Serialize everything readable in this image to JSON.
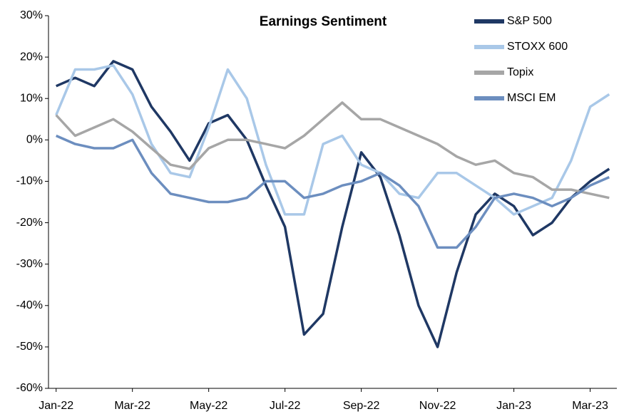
{
  "chart_data": {
    "type": "line",
    "title": "Earnings Sentiment",
    "x": [
      0,
      0.5,
      1,
      1.5,
      2,
      2.5,
      3,
      3.5,
      4,
      4.5,
      5,
      5.5,
      6,
      6.5,
      7,
      7.5,
      8,
      8.5,
      9,
      9.5,
      10,
      10.5,
      11,
      11.5,
      12,
      12.5,
      13,
      13.5,
      14,
      14.5
    ],
    "xlim": [
      -0.2,
      14.7
    ],
    "xticks": [
      {
        "value": 0,
        "label": "Jan-22"
      },
      {
        "value": 2,
        "label": "Mar-22"
      },
      {
        "value": 4,
        "label": "May-22"
      },
      {
        "value": 6,
        "label": "Jul-22"
      },
      {
        "value": 8,
        "label": "Sep-22"
      },
      {
        "value": 10,
        "label": "Nov-22"
      },
      {
        "value": 12,
        "label": "Jan-23"
      },
      {
        "value": 14,
        "label": "Mar-23"
      }
    ],
    "ylim": [
      -60,
      30
    ],
    "yticks": [
      {
        "value": 30,
        "label": "30%"
      },
      {
        "value": 20,
        "label": "20%"
      },
      {
        "value": 10,
        "label": "10%"
      },
      {
        "value": 0,
        "label": "0%"
      },
      {
        "value": -10,
        "label": "-10%"
      },
      {
        "value": -20,
        "label": "-20%"
      },
      {
        "value": -30,
        "label": "-30%"
      },
      {
        "value": -40,
        "label": "-40%"
      },
      {
        "value": -50,
        "label": "-50%"
      },
      {
        "value": -60,
        "label": "-60%"
      }
    ],
    "legend": "upper right",
    "series": [
      {
        "name": "S&P 500",
        "color": "#1f3864",
        "values": [
          13,
          15,
          13,
          19,
          17,
          8,
          2,
          -5,
          4,
          6,
          0,
          -11,
          -21,
          -47,
          -42,
          -21,
          -3,
          -9,
          -23,
          -40,
          -50,
          -32,
          -18,
          -13,
          -16,
          -23,
          -20,
          -14,
          -10,
          -7
        ]
      },
      {
        "name": "STOXX 600",
        "color": "#a9c8e8",
        "values": [
          6,
          17,
          17,
          18,
          11,
          -1,
          -8,
          -9,
          3,
          17,
          10,
          -6,
          -18,
          -18,
          -1,
          1,
          -6,
          -8,
          -13,
          -14,
          -8,
          -8,
          -11,
          -14,
          -18,
          -16,
          -14,
          -5,
          8,
          11
        ]
      },
      {
        "name": "Topix",
        "color": "#a6a6a6",
        "values": [
          6,
          1,
          3,
          5,
          2,
          -2,
          -6,
          -7,
          -2,
          0,
          0,
          -1,
          -2,
          1,
          5,
          9,
          5,
          5,
          3,
          1,
          -1,
          -4,
          -6,
          -5,
          -8,
          -9,
          -12,
          -12,
          -13,
          -14
        ]
      },
      {
        "name": "MSCI EM",
        "color": "#6c8ebf",
        "values": [
          1,
          -1,
          -2,
          -2,
          0,
          -8,
          -13,
          -14,
          -15,
          -15,
          -14,
          -10,
          -10,
          -14,
          -13,
          -11,
          -10,
          -8,
          -11,
          -16,
          -26,
          -26,
          -21,
          -14,
          -13,
          -14,
          -16,
          -14,
          -11,
          -9
        ]
      }
    ]
  }
}
